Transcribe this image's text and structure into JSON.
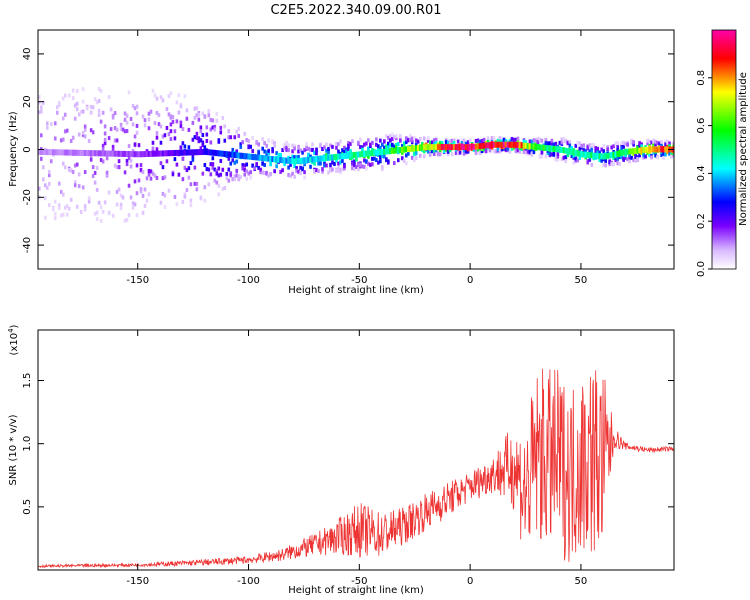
{
  "title": "C2E5.2022.340.09.00.R01",
  "colors": {
    "snr_line": "#ee3333",
    "frame": "#000000"
  },
  "chart_data": [
    {
      "type": "heatmap",
      "xlabel": "Height of straight line (km)",
      "ylabel": "Frequency (Hz)",
      "xlim": [
        -195,
        92
      ],
      "ylim": [
        -50,
        50
      ],
      "xticks": [
        -150,
        -100,
        -50,
        0,
        50
      ],
      "xtick_labels": [
        "-150",
        "-100",
        "-50",
        "0",
        "50"
      ],
      "yticks": [
        -40,
        -20,
        0,
        20,
        40
      ],
      "ytick_labels": [
        "-40",
        "-20",
        "0",
        "20",
        "40"
      ],
      "colorbar": {
        "label": "Normalized spectral amplitude",
        "range": [
          0,
          1
        ],
        "ticks": [
          0.0,
          0.2,
          0.4,
          0.6,
          0.8
        ],
        "tick_labels": [
          "0.0",
          "0.2",
          "0.4",
          "0.6",
          "0.8"
        ],
        "colormap": "rainbow (white-violet-blue-cyan-green-yellow-red-magenta)"
      },
      "ridge": {
        "x": [
          -195,
          -150,
          -120,
          -100,
          -80,
          -60,
          -40,
          -30,
          -20,
          -10,
          0,
          10,
          20,
          30,
          40,
          50,
          60,
          70,
          80,
          92
        ],
        "y": [
          -1,
          -2,
          -1,
          -3,
          -5,
          -3,
          -1,
          0,
          1,
          1,
          1,
          2,
          2,
          1,
          0,
          -2,
          -3,
          -1,
          0,
          0
        ],
        "amplitude": [
          0.1,
          0.15,
          0.25,
          0.35,
          0.4,
          0.45,
          0.5,
          0.6,
          0.75,
          0.9,
          0.95,
          0.95,
          0.9,
          0.55,
          0.5,
          0.5,
          0.45,
          0.55,
          0.8,
          0.9
        ],
        "spread_hz": [
          45,
          40,
          25,
          10,
          8,
          7,
          8,
          6,
          4,
          3,
          3,
          3,
          3,
          4,
          5,
          5,
          5,
          5,
          4,
          3
        ]
      },
      "grid": false
    },
    {
      "type": "line",
      "xlabel": "Height of straight line (km)",
      "ylabel": "SNR (10 * v/v)",
      "scale_label": "(x10",
      "scale_exp": "4",
      "scale_close": ")",
      "xlim": [
        -195,
        92
      ],
      "ylim": [
        0,
        19000
      ],
      "xticks": [
        -150,
        -100,
        -50,
        0,
        50
      ],
      "xtick_labels": [
        "-150",
        "-100",
        "-50",
        "0",
        "50"
      ],
      "yticks": [
        5000,
        10000,
        15000
      ],
      "ytick_labels": [
        "0.5",
        "1.0",
        "1.5"
      ],
      "series": [
        {
          "color": "#ee3333",
          "envelope": {
            "x": [
              -195,
              -150,
              -120,
              -100,
              -85,
              -70,
              -60,
              -50,
              -40,
              -30,
              -20,
              -10,
              0,
              10,
              20,
              25,
              30,
              40,
              45,
              50,
              55,
              60,
              65,
              70,
              80,
              92
            ],
            "mean": [
              300,
              400,
              600,
              800,
              1200,
              2000,
              2600,
              3200,
              2800,
              3500,
              4600,
              5600,
              6600,
              7600,
              8200,
              6000,
              9000,
              8500,
              7500,
              8500,
              9000,
              8500,
              10500,
              9800,
              9500,
              9600
            ],
            "amplitude": [
              100,
              120,
              250,
              300,
              500,
              900,
              1400,
              2200,
              1800,
              1500,
              1500,
              1400,
              1200,
              1500,
              3500,
              5500,
              7000,
              7500,
              7000,
              7500,
              8000,
              7500,
              900,
              300,
              200,
              200
            ]
          }
        }
      ],
      "grid": false
    }
  ]
}
